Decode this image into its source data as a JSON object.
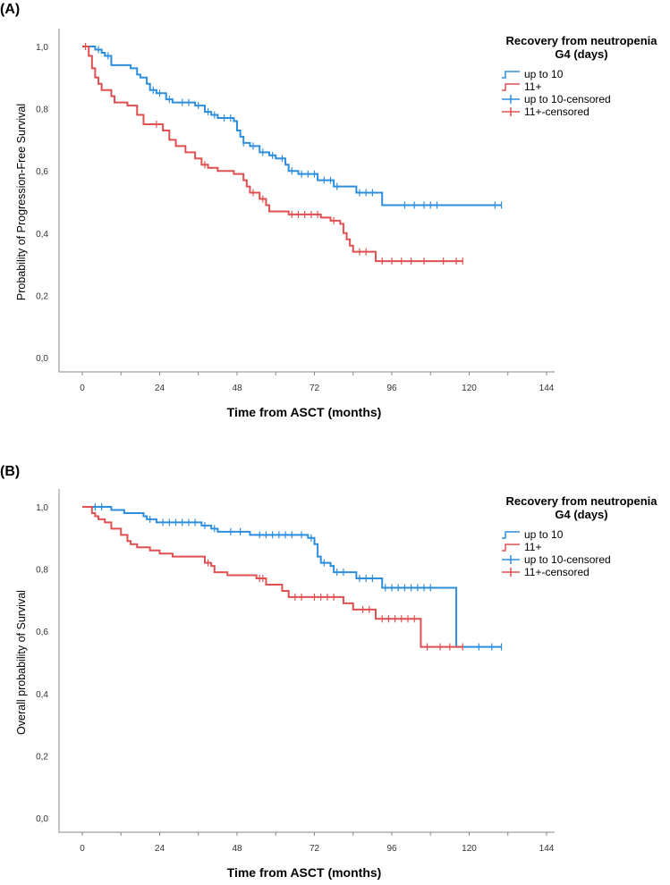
{
  "colors": {
    "up_to_10": "#2e8ede",
    "eleven_plus": "#e05050"
  },
  "chart_data": [
    {
      "panel": "(A)",
      "type": "line",
      "ylabel": "Probability of Progression-Free Survival",
      "xlabel": "Time from ASCT (months)",
      "xlim": [
        0,
        144
      ],
      "ylim": [
        0,
        1
      ],
      "xticks": [
        "0",
        "24",
        "48",
        "72",
        "96",
        "120",
        "144"
      ],
      "yticks": [
        "0,0",
        "0,2",
        "0,4",
        "0,6",
        "0,8",
        "1,0"
      ],
      "legend": {
        "title": "Recovery from neutropenia G4 (days)",
        "items": [
          "up to 10",
          "11+",
          "up to 10-censored",
          "11+-censored"
        ]
      },
      "series": [
        {
          "name": "up to 10",
          "steps": [
            [
              0,
              1
            ],
            [
              4,
              0.99
            ],
            [
              6,
              0.98
            ],
            [
              7,
              0.97
            ],
            [
              9,
              0.94
            ],
            [
              15,
              0.93
            ],
            [
              17,
              0.91
            ],
            [
              18,
              0.9
            ],
            [
              20,
              0.88
            ],
            [
              21,
              0.86
            ],
            [
              23,
              0.85
            ],
            [
              26,
              0.83
            ],
            [
              28,
              0.82
            ],
            [
              35,
              0.81
            ],
            [
              38,
              0.79
            ],
            [
              40,
              0.78
            ],
            [
              42,
              0.77
            ],
            [
              47,
              0.76
            ],
            [
              48,
              0.73
            ],
            [
              49,
              0.71
            ],
            [
              50,
              0.69
            ],
            [
              52,
              0.68
            ],
            [
              55,
              0.66
            ],
            [
              58,
              0.65
            ],
            [
              60,
              0.64
            ],
            [
              63,
              0.62
            ],
            [
              64,
              0.6
            ],
            [
              67,
              0.59
            ],
            [
              73,
              0.57
            ],
            [
              78,
              0.55
            ],
            [
              85,
              0.53
            ],
            [
              93,
              0.49
            ]
          ],
          "end": 130,
          "censored": [
            5,
            8,
            22,
            24,
            27,
            31,
            33,
            36,
            39,
            41,
            44,
            46,
            50,
            53,
            56,
            59,
            62,
            65,
            68,
            70,
            72,
            75,
            77,
            79,
            86,
            88,
            90,
            100,
            103,
            106,
            108,
            110,
            128,
            130
          ]
        },
        {
          "name": "11+",
          "steps": [
            [
              0,
              1
            ],
            [
              2,
              0.97
            ],
            [
              3,
              0.93
            ],
            [
              4,
              0.9
            ],
            [
              5,
              0.88
            ],
            [
              6,
              0.86
            ],
            [
              9,
              0.84
            ],
            [
              10,
              0.82
            ],
            [
              14,
              0.81
            ],
            [
              17,
              0.78
            ],
            [
              19,
              0.75
            ],
            [
              25,
              0.73
            ],
            [
              27,
              0.7
            ],
            [
              29,
              0.68
            ],
            [
              32,
              0.66
            ],
            [
              35,
              0.64
            ],
            [
              37,
              0.62
            ],
            [
              39,
              0.61
            ],
            [
              42,
              0.6
            ],
            [
              47,
              0.59
            ],
            [
              50,
              0.57
            ],
            [
              51,
              0.55
            ],
            [
              52,
              0.53
            ],
            [
              55,
              0.51
            ],
            [
              57,
              0.49
            ],
            [
              58,
              0.47
            ],
            [
              64,
              0.46
            ],
            [
              74,
              0.45
            ],
            [
              77,
              0.44
            ],
            [
              80,
              0.43
            ],
            [
              81,
              0.4
            ],
            [
              82,
              0.38
            ],
            [
              83,
              0.36
            ],
            [
              84,
              0.34
            ],
            [
              91,
              0.31
            ]
          ],
          "end": 118,
          "censored": [
            1,
            23,
            38,
            53,
            56,
            65,
            67,
            69,
            71,
            73,
            78,
            86,
            88,
            93,
            96,
            99,
            102,
            106,
            112,
            116,
            118
          ]
        }
      ]
    },
    {
      "panel": "(B)",
      "type": "line",
      "ylabel": "Overall probability of Survival",
      "xlabel": "Time from ASCT (months)",
      "xlim": [
        0,
        144
      ],
      "ylim": [
        0,
        1
      ],
      "xticks": [
        "0",
        "24",
        "48",
        "72",
        "96",
        "120",
        "144"
      ],
      "yticks": [
        "0,0",
        "0,2",
        "0,4",
        "0,6",
        "0,8",
        "1,0"
      ],
      "legend": {
        "title": "Recovery from neutropenia G4 (days)",
        "items": [
          "up to 10",
          "11+",
          "up to 10-censored",
          "11+-censored"
        ]
      },
      "series": [
        {
          "name": "up to 10",
          "steps": [
            [
              0,
              1
            ],
            [
              9,
              0.99
            ],
            [
              13,
              0.98
            ],
            [
              19,
              0.97
            ],
            [
              20,
              0.96
            ],
            [
              23,
              0.95
            ],
            [
              37,
              0.94
            ],
            [
              40,
              0.93
            ],
            [
              42,
              0.92
            ],
            [
              52,
              0.91
            ],
            [
              70,
              0.9
            ],
            [
              72,
              0.88
            ],
            [
              73,
              0.84
            ],
            [
              74,
              0.82
            ],
            [
              77,
              0.81
            ],
            [
              78,
              0.79
            ],
            [
              85,
              0.77
            ],
            [
              93,
              0.74
            ],
            [
              116,
              0.55
            ]
          ],
          "end": 130,
          "censored": [
            4,
            6,
            21,
            25,
            27,
            29,
            31,
            33,
            35,
            38,
            41,
            46,
            49,
            55,
            57,
            59,
            61,
            63,
            65,
            68,
            71,
            75,
            79,
            81,
            86,
            88,
            90,
            94,
            96,
            98,
            100,
            102,
            104,
            106,
            108,
            123,
            127,
            130
          ]
        },
        {
          "name": "11+",
          "steps": [
            [
              0,
              1
            ],
            [
              3,
              0.98
            ],
            [
              4,
              0.97
            ],
            [
              5,
              0.96
            ],
            [
              7,
              0.95
            ],
            [
              9,
              0.93
            ],
            [
              12,
              0.91
            ],
            [
              14,
              0.89
            ],
            [
              15,
              0.88
            ],
            [
              17,
              0.87
            ],
            [
              21,
              0.86
            ],
            [
              24,
              0.85
            ],
            [
              28,
              0.84
            ],
            [
              38,
              0.82
            ],
            [
              40,
              0.81
            ],
            [
              41,
              0.79
            ],
            [
              45,
              0.78
            ],
            [
              54,
              0.77
            ],
            [
              57,
              0.75
            ],
            [
              62,
              0.73
            ],
            [
              64,
              0.71
            ],
            [
              81,
              0.69
            ],
            [
              84,
              0.67
            ],
            [
              91,
              0.64
            ],
            [
              105,
              0.55
            ]
          ],
          "end": 118,
          "censored": [
            39,
            55,
            56,
            66,
            68,
            72,
            74,
            76,
            78,
            87,
            89,
            93,
            95,
            97,
            99,
            101,
            103,
            107,
            111,
            114,
            118
          ]
        }
      ]
    }
  ]
}
